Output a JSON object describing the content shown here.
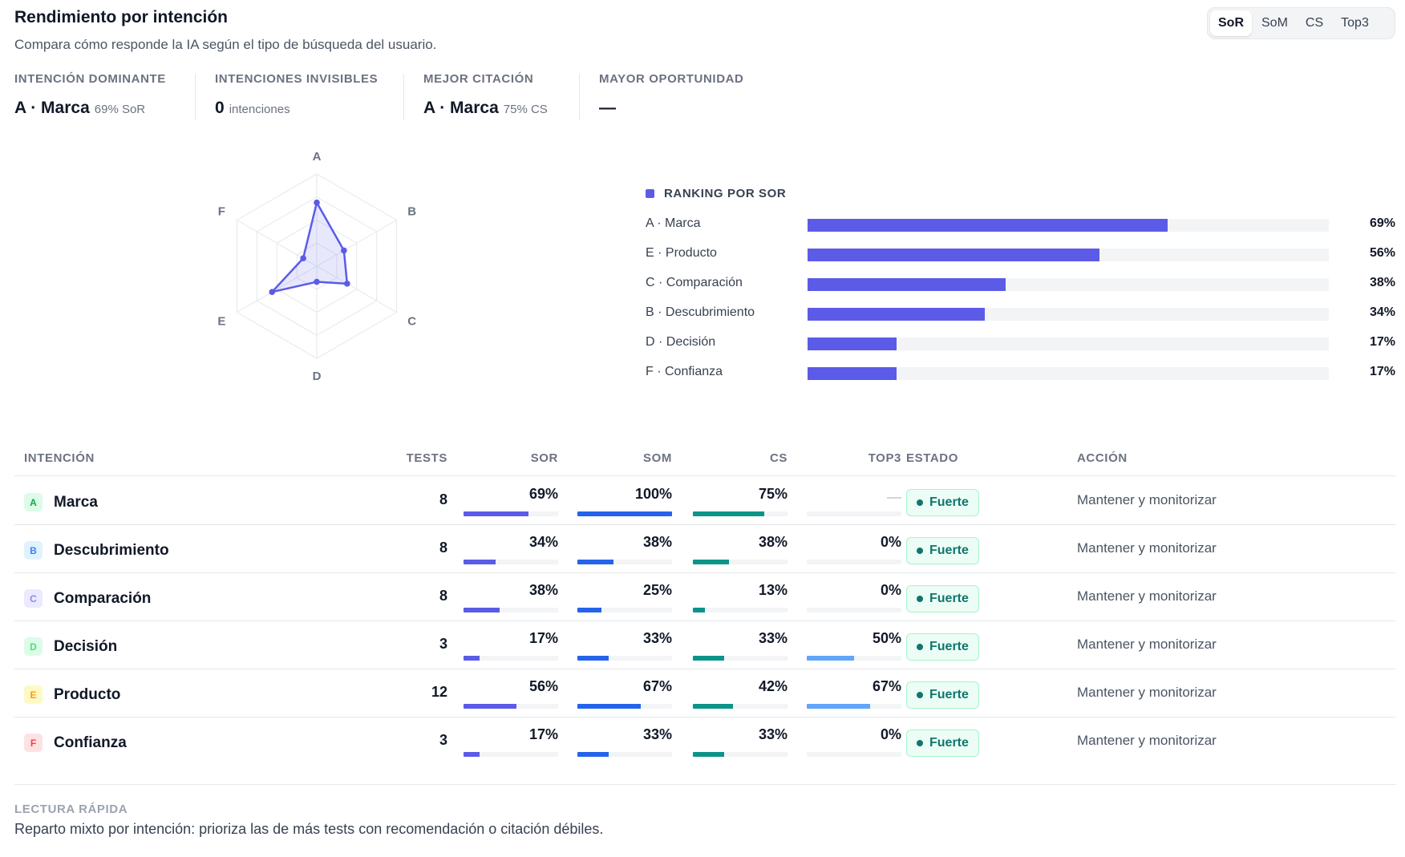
{
  "header": {
    "title": "Rendimiento por intención",
    "subtitle": "Compara cómo responde la IA según el tipo de búsqueda del usuario."
  },
  "metric_toggle": {
    "options": [
      "SoR",
      "SoM",
      "CS",
      "Top3"
    ],
    "selected": "SoR"
  },
  "kpis": [
    {
      "label": "INTENCIÓN DOMINANTE",
      "value": "A · Marca",
      "sub": "69% SoR"
    },
    {
      "label": "INTENCIONES INVISIBLES",
      "value": "0",
      "sub": "intenciones"
    },
    {
      "label": "MEJOR CITACIÓN",
      "value": "A · Marca",
      "sub": "75% CS"
    },
    {
      "label": "MAYOR OPORTUNIDAD",
      "value": "—",
      "sub": ""
    }
  ],
  "chart_data": [
    {
      "type": "radar",
      "axes": [
        "A",
        "B",
        "C",
        "D",
        "E",
        "F"
      ],
      "values": [
        69,
        34,
        38,
        17,
        56,
        17
      ],
      "range": [
        0,
        100
      ],
      "grid_rings": 4,
      "color": "#5b5be8"
    },
    {
      "type": "bar",
      "orientation": "horizontal",
      "title": "RANKING POR SOR",
      "categories": [
        "A · Marca",
        "E · Producto",
        "C · Comparación",
        "B · Descubrimiento",
        "D · Decisión",
        "F · Confianza"
      ],
      "values": [
        69,
        56,
        38,
        34,
        17,
        17
      ],
      "value_labels": [
        "69%",
        "56%",
        "38%",
        "34%",
        "17%",
        "17%"
      ],
      "xlim": [
        0,
        100
      ],
      "color": "#5b5be8"
    }
  ],
  "table": {
    "columns": {
      "intent": "INTENCIÓN",
      "tests": "TESTS",
      "sor": "SOR",
      "som": "SOM",
      "cs": "CS",
      "top3": "TOP3",
      "status": "ESTADO",
      "action": "ACCIÓN"
    },
    "colors": {
      "sor": "#5b5be8",
      "som": "#2563eb",
      "cs": "#0d9488",
      "top3": "#60a5fa"
    },
    "rows": [
      {
        "letter": "A",
        "name": "Marca",
        "tests": "8",
        "sor": 69,
        "sor_label": "69%",
        "som": 100,
        "som_label": "100%",
        "cs": 75,
        "cs_label": "75%",
        "top3": null,
        "top3_label": "",
        "status": "Fuerte",
        "action": "Mantener y monitorizar",
        "badge_bg": "#dcfce7",
        "badge_fg": "#16a34a"
      },
      {
        "letter": "B",
        "name": "Descubrimiento",
        "tests": "8",
        "sor": 34,
        "sor_label": "34%",
        "som": 38,
        "som_label": "38%",
        "cs": 38,
        "cs_label": "38%",
        "top3": 0,
        "top3_label": "0%",
        "status": "Fuerte",
        "action": "Mantener y monitorizar",
        "badge_bg": "#e0f2fe",
        "badge_fg": "#3b82f6"
      },
      {
        "letter": "C",
        "name": "Comparación",
        "tests": "8",
        "sor": 38,
        "sor_label": "38%",
        "som": 25,
        "som_label": "25%",
        "cs": 13,
        "cs_label": "13%",
        "top3": 0,
        "top3_label": "0%",
        "status": "Fuerte",
        "action": "Mantener y monitorizar",
        "badge_bg": "#ede9fe",
        "badge_fg": "#818cf8"
      },
      {
        "letter": "D",
        "name": "Decisión",
        "tests": "3",
        "sor": 17,
        "sor_label": "17%",
        "som": 33,
        "som_label": "33%",
        "cs": 33,
        "cs_label": "33%",
        "top3": 50,
        "top3_label": "50%",
        "status": "Fuerte",
        "action": "Mantener y monitorizar",
        "badge_bg": "#dcfce7",
        "badge_fg": "#4ade80"
      },
      {
        "letter": "E",
        "name": "Producto",
        "tests": "12",
        "sor": 56,
        "sor_label": "56%",
        "som": 67,
        "som_label": "67%",
        "cs": 42,
        "cs_label": "42%",
        "top3": 67,
        "top3_label": "67%",
        "status": "Fuerte",
        "action": "Mantener y monitorizar",
        "badge_bg": "#fef9c3",
        "badge_fg": "#f59e0b"
      },
      {
        "letter": "F",
        "name": "Confianza",
        "tests": "3",
        "sor": 17,
        "sor_label": "17%",
        "som": 33,
        "som_label": "33%",
        "cs": 33,
        "cs_label": "33%",
        "top3": 0,
        "top3_label": "0%",
        "status": "Fuerte",
        "action": "Mantener y monitorizar",
        "badge_bg": "#fee2e2",
        "badge_fg": "#ef4444"
      }
    ]
  },
  "quick_read": {
    "label": "LECTURA RÁPIDA",
    "text": "Reparto mixto por intención: prioriza las de más tests con recomendación o citación débiles."
  }
}
